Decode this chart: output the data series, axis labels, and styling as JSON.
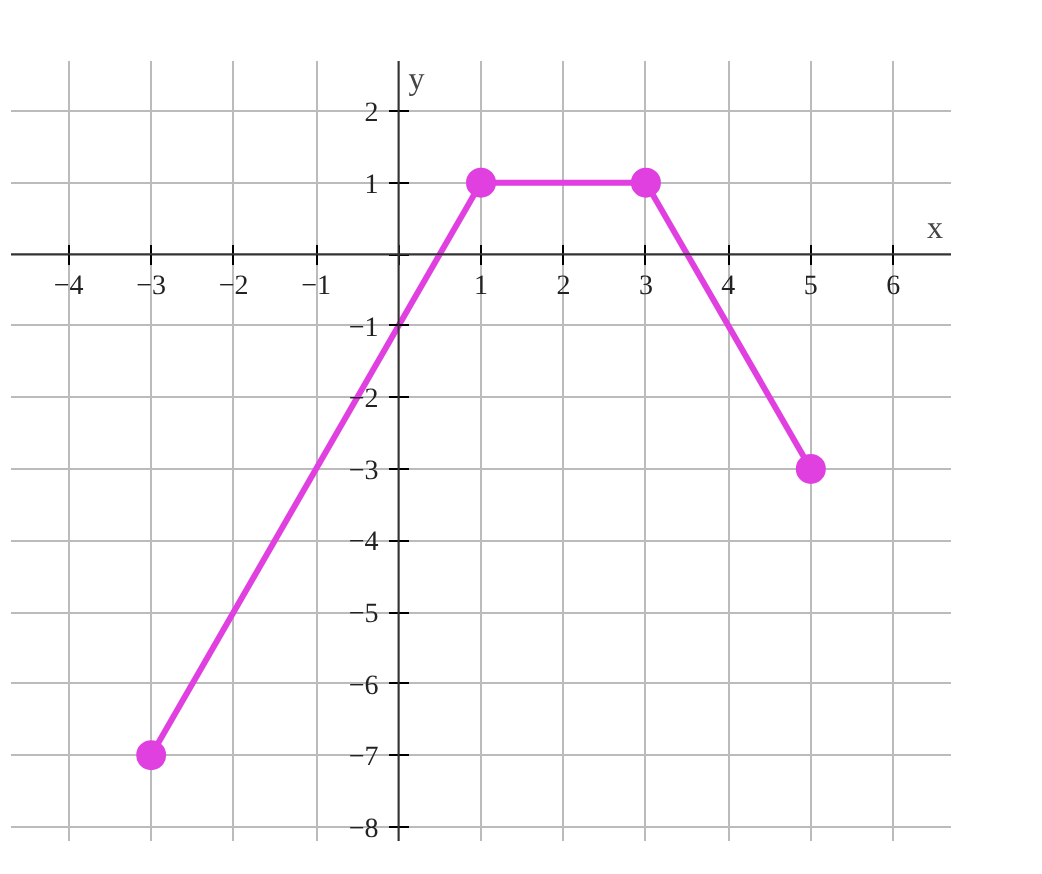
{
  "chart_data": {
    "type": "line",
    "xlabel": "x",
    "ylabel": "y",
    "x": [
      -3,
      1,
      3,
      5
    ],
    "series": [
      {
        "color": "#e040e0",
        "values": [
          -7,
          1,
          1,
          -3
        ]
      }
    ],
    "marker": "circle",
    "line_style": "solid",
    "grid": true,
    "xlim": [
      -4.7,
      6.7
    ],
    "ylim": [
      -8.2,
      2.7
    ],
    "xticks": [
      -4,
      -3,
      -2,
      -1,
      {
        "value": 0,
        "label": null
      },
      1,
      2,
      3,
      4,
      5,
      6
    ],
    "yticks": [
      -8,
      -7,
      -6,
      -5,
      -4,
      -3,
      -2,
      -1,
      {
        "value": 0,
        "label": null
      },
      1,
      2
    ]
  }
}
